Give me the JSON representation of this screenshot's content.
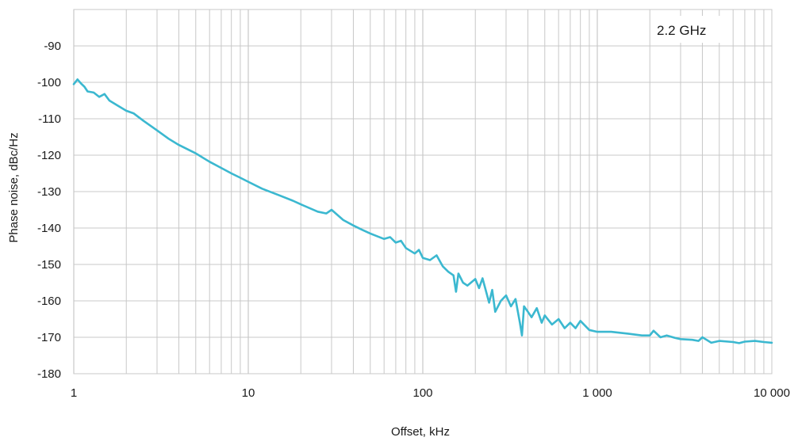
{
  "chart_data": {
    "type": "line",
    "title": "",
    "xlabel": "Offset, kHz",
    "ylabel": "Phase noise, dBc/Hz",
    "x_scale": "log",
    "xlim": [
      1,
      10000
    ],
    "ylim": [
      -180,
      -80
    ],
    "grid": true,
    "x_ticks": [
      1,
      10,
      100,
      1000,
      10000
    ],
    "x_tick_labels": [
      "1",
      "10",
      "100",
      "1 000",
      "10 000"
    ],
    "y_ticks": [
      -180,
      -170,
      -160,
      -150,
      -140,
      -130,
      -120,
      -110,
      -100,
      -90
    ],
    "y_tick_labels": [
      "-180",
      "-170",
      "-160",
      "-150",
      "-140",
      "-130",
      "-120",
      "-110",
      "-100",
      "-90"
    ],
    "annotation": "2.2 GHz",
    "line_color": "#3bb8d0",
    "grid_color": "#c8c8c8",
    "series": [
      {
        "x": [
          1,
          1.05,
          1.1,
          1.15,
          1.2,
          1.3,
          1.4,
          1.5,
          1.6,
          1.8,
          2,
          2.2,
          2.5,
          3,
          3.5,
          4,
          5,
          6,
          7,
          8,
          9,
          10,
          12,
          15,
          18,
          20,
          25,
          28,
          30,
          35,
          40,
          45,
          50,
          55,
          60,
          65,
          70,
          75,
          80,
          90,
          95,
          100,
          110,
          120,
          130,
          140,
          150,
          155,
          160,
          170,
          180,
          200,
          210,
          220,
          240,
          250,
          260,
          280,
          300,
          320,
          340,
          360,
          370,
          380,
          400,
          420,
          450,
          480,
          500,
          550,
          600,
          650,
          700,
          750,
          800,
          900,
          1000,
          1200,
          1500,
          1800,
          2000,
          2100,
          2300,
          2500,
          2800,
          3000,
          3500,
          3800,
          4000,
          4500,
          5000,
          6000,
          6500,
          7000,
          8000,
          9000,
          10000
        ],
        "y": [
          -100.5,
          -99.2,
          -100.3,
          -101.2,
          -102.5,
          -102.8,
          -104.0,
          -103.2,
          -105.0,
          -106.5,
          -107.8,
          -108.5,
          -110.5,
          -113.2,
          -115.5,
          -117.2,
          -119.5,
          -121.8,
          -123.5,
          -125.0,
          -126.2,
          -127.3,
          -129.2,
          -131.0,
          -132.5,
          -133.5,
          -135.5,
          -136.0,
          -135.0,
          -137.8,
          -139.3,
          -140.5,
          -141.5,
          -142.3,
          -143.0,
          -142.5,
          -144.0,
          -143.5,
          -145.5,
          -147.0,
          -146.0,
          -148.2,
          -148.8,
          -147.5,
          -150.5,
          -152.0,
          -153.0,
          -157.5,
          -152.5,
          -155.0,
          -155.8,
          -154.0,
          -156.5,
          -153.8,
          -160.5,
          -157.0,
          -163.0,
          -160.0,
          -158.5,
          -161.5,
          -159.5,
          -166.0,
          -169.5,
          -161.5,
          -163.0,
          -164.5,
          -162.0,
          -166.0,
          -164.0,
          -166.5,
          -165.0,
          -167.5,
          -166.0,
          -167.5,
          -165.5,
          -168.0,
          -168.5,
          -168.5,
          -169.0,
          -169.5,
          -169.5,
          -168.2,
          -170.0,
          -169.5,
          -170.2,
          -170.5,
          -170.7,
          -171.0,
          -170.0,
          -171.5,
          -171.0,
          -171.3,
          -171.6,
          -171.2,
          -171.0,
          -171.3,
          -171.5
        ]
      }
    ]
  }
}
